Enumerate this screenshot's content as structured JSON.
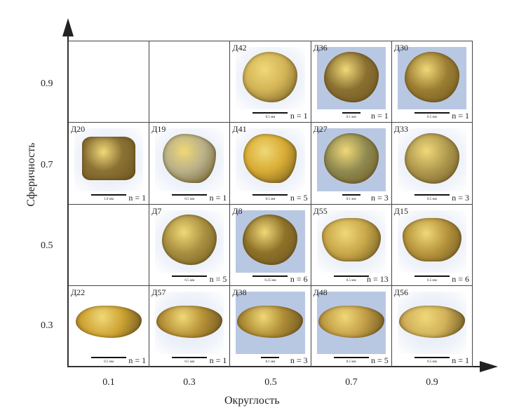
{
  "y_axis": {
    "title": "Сферичность",
    "ticks": [
      "0.9",
      "0.7",
      "0.5",
      "0.3"
    ]
  },
  "x_axis": {
    "title": "Округлость",
    "ticks": [
      "0.1",
      "0.3",
      "0.5",
      "0.7",
      "0.9"
    ]
  },
  "colors": {
    "grain": "#c9a53a",
    "grain_dark": "#6b5520",
    "photo_bg": "#b9c8e2"
  },
  "rows": [
    [
      null,
      null,
      {
        "label": "Д42",
        "scale": "0.5 мм",
        "n": "n = 1",
        "bg": "soft",
        "shape": "round",
        "tone": "#d2b456"
      },
      {
        "label": "Д36",
        "scale": "0.1 мм",
        "n": "n = 1",
        "bg": "blue",
        "shape": "round",
        "tone": "#8a7030"
      },
      {
        "label": "Д30",
        "scale": "0.5 мм",
        "n": "n = 1",
        "bg": "blue",
        "shape": "round",
        "tone": "#9c7e32"
      }
    ],
    [
      {
        "label": "Д20",
        "scale": "1.0 мм",
        "n": "n = 1",
        "bg": "soft",
        "shape": "square",
        "tone": "#8c7234"
      },
      {
        "label": "Д19",
        "scale": "0.5 мм",
        "n": "n = 1",
        "bg": "soft",
        "shape": "angular",
        "tone": "#b8b08a"
      },
      {
        "label": "Д41",
        "scale": "0.5 мм",
        "n": "n = 5",
        "bg": "soft",
        "shape": "angular",
        "tone": "#d8ac34"
      },
      {
        "label": "Д27",
        "scale": "0.1 мм",
        "n": "n = 3",
        "bg": "blue",
        "shape": "round",
        "tone": "#8f8a50"
      },
      {
        "label": "Д33",
        "scale": "0.5 мм",
        "n": "n = 3",
        "bg": "soft",
        "shape": "round",
        "tone": "#b09a50"
      }
    ],
    [
      null,
      {
        "label": "Д7",
        "scale": "0.5 мм",
        "n": "n = 5",
        "bg": "soft",
        "shape": "round",
        "tone": "#a99040"
      },
      {
        "label": "Д8",
        "scale": "0.25 мм",
        "n": "n = 6",
        "bg": "blue",
        "shape": "round",
        "tone": "#8e7228"
      },
      {
        "label": "Д55",
        "scale": "0.5 мм",
        "n": "n = 13",
        "bg": "soft",
        "shape": "wide",
        "tone": "#c9a84a"
      },
      {
        "label": "Д15",
        "scale": "0.5 мм",
        "n": "n = 6",
        "bg": "soft",
        "shape": "wide",
        "tone": "#b8963e"
      }
    ],
    [
      {
        "label": "Д22",
        "scale": "0.5 мм",
        "n": "n = 1",
        "bg": "none",
        "shape": "flat",
        "tone": "#cfa434"
      },
      {
        "label": "Д57",
        "scale": "0.5 мм",
        "n": "n = 1",
        "bg": "soft",
        "shape": "flat",
        "tone": "#b89238"
      },
      {
        "label": "Д38",
        "scale": "0.1 мм",
        "n": "n = 3",
        "bg": "blue",
        "shape": "flat",
        "tone": "#b08e36"
      },
      {
        "label": "Д48",
        "scale": "0.5 мм",
        "n": "n = 5",
        "bg": "blue",
        "shape": "flat",
        "tone": "#c4a048"
      },
      {
        "label": "Д56",
        "scale": "0.5 мм",
        "n": "n = 1",
        "bg": "soft",
        "shape": "flat",
        "tone": "#d2b25a"
      }
    ]
  ]
}
